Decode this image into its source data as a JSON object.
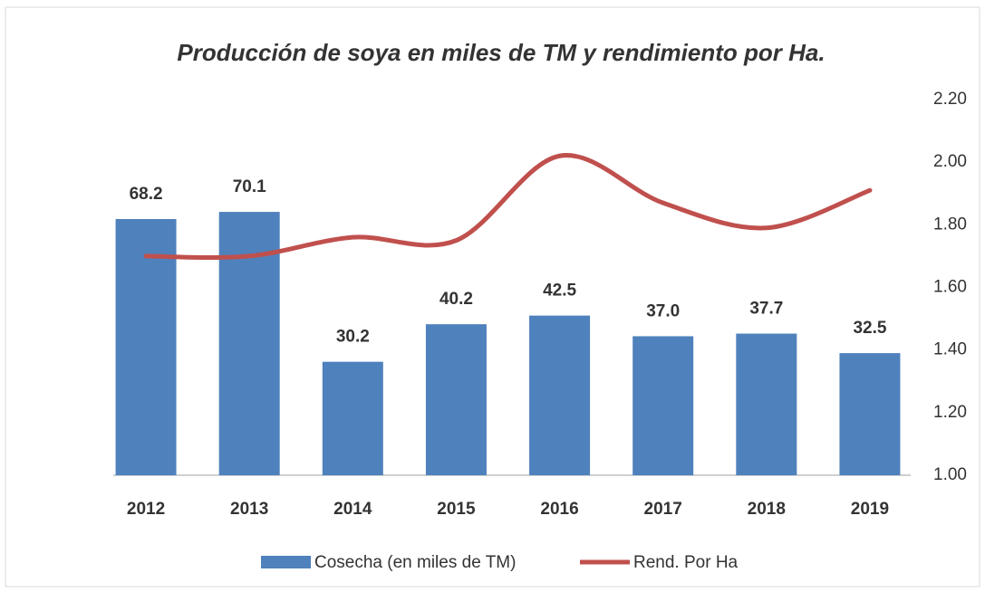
{
  "chart_data": {
    "type": "bar_line",
    "title": "Producción de soya en miles de TM y rendimiento por Ha.",
    "categories": [
      "2012",
      "2013",
      "2014",
      "2015",
      "2016",
      "2017",
      "2018",
      "2019"
    ],
    "series": [
      {
        "name": "Cosecha (en miles de TM)",
        "type": "bar",
        "color": "#4f81bd",
        "values": [
          68.2,
          70.1,
          30.2,
          40.2,
          42.5,
          37.0,
          37.7,
          32.5
        ],
        "value_labels": [
          "68.2",
          "70.1",
          "30.2",
          "40.2",
          "42.5",
          "37.0",
          "37.7",
          "32.5"
        ]
      },
      {
        "name": "Rend. Por Ha",
        "type": "line",
        "axis": "y2",
        "color": "#c0504d",
        "values": [
          1.7,
          1.7,
          1.76,
          1.75,
          2.02,
          1.87,
          1.79,
          1.91
        ]
      }
    ],
    "ylim": [
      0,
      100
    ],
    "y2lim": [
      1.0,
      2.2
    ],
    "y2ticks": [
      {
        "value": 1.0,
        "label": "1.00"
      },
      {
        "value": 1.2,
        "label": "1.20"
      },
      {
        "value": 1.4,
        "label": "1.40"
      },
      {
        "value": 1.6,
        "label": "1.60"
      },
      {
        "value": 1.8,
        "label": "1.80"
      },
      {
        "value": 2.0,
        "label": "2.00"
      },
      {
        "value": 2.2,
        "label": "2.20"
      }
    ],
    "legend": "bottom"
  }
}
